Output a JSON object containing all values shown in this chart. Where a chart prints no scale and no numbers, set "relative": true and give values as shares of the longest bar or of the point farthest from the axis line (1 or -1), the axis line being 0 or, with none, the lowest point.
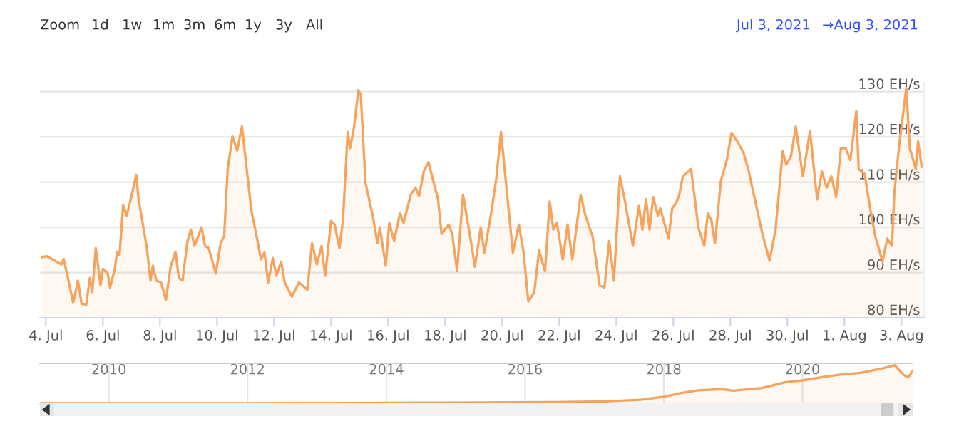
{
  "chart_data": [
    {
      "type": "area",
      "annotations": [
        "Zoom",
        "1d",
        "1w",
        "1m",
        "3m",
        "6m",
        "1y",
        "3y",
        "All",
        "Jul 3, 2021",
        "→",
        "Aug 3, 2021"
      ],
      "xlim": [
        "2021-07-03T19:00",
        "2021-08-03T19:00"
      ],
      "xticks": [
        {
          "value": "2021-07-04",
          "label": "4. Jul"
        },
        {
          "value": "2021-07-06",
          "label": "6. Jul"
        },
        {
          "value": "2021-07-08",
          "label": "8. Jul"
        },
        {
          "value": "2021-07-10",
          "label": "10. Jul"
        },
        {
          "value": "2021-07-12",
          "label": "12. Jul"
        },
        {
          "value": "2021-07-14",
          "label": "14. Jul"
        },
        {
          "value": "2021-07-16",
          "label": "16. Jul"
        },
        {
          "value": "2021-07-18",
          "label": "18. Jul"
        },
        {
          "value": "2021-07-20",
          "label": "20. Jul"
        },
        {
          "value": "2021-07-22",
          "label": "22. Jul"
        },
        {
          "value": "2021-07-24",
          "label": "24. Jul"
        },
        {
          "value": "2021-07-26",
          "label": "26. Jul"
        },
        {
          "value": "2021-07-28",
          "label": "28. Jul"
        },
        {
          "value": "2021-07-30",
          "label": "30. Jul"
        },
        {
          "value": "2021-08-01",
          "label": "1. Aug"
        },
        {
          "value": "2021-08-03",
          "label": "3. Aug"
        }
      ],
      "ylim": [
        80,
        132
      ],
      "yticks": [
        {
          "value": 80,
          "label": "80 EH/s"
        },
        {
          "value": 90,
          "label": "90 EH/s"
        },
        {
          "value": 100,
          "label": "100 EH/s"
        },
        {
          "value": 110,
          "label": "110 EH/s"
        },
        {
          "value": 120,
          "label": "120 EH/s"
        },
        {
          "value": 130,
          "label": "130 EH/s"
        }
      ],
      "grid": "y",
      "legend": false,
      "series": [
        {
          "color": "#f7a35c",
          "x": [
            "2021-07-03T21:00",
            "2021-07-04T01:00",
            "2021-07-04T13:00",
            "2021-07-04T15:00",
            "2021-07-04T19:00",
            "2021-07-04T23:00",
            "2021-07-05T03:00",
            "2021-07-05T06:00",
            "2021-07-05T10:00",
            "2021-07-05T13:00",
            "2021-07-05T15:00",
            "2021-07-05T18:00",
            "2021-07-05T22:00",
            "2021-07-06T00:00",
            "2021-07-06T04:00",
            "2021-07-06T06:00",
            "2021-07-06T10:00",
            "2021-07-06T12:00",
            "2021-07-06T14:00",
            "2021-07-06T17:00",
            "2021-07-06T20:00",
            "2021-07-06T23:00",
            "2021-07-07T04:00",
            "2021-07-07T06:00",
            "2021-07-07T09:00",
            "2021-07-07T13:00",
            "2021-07-07T16:00",
            "2021-07-07T18:00",
            "2021-07-07T21:00",
            "2021-07-08T01:00",
            "2021-07-08T05:00",
            "2021-07-08T09:00",
            "2021-07-08T11:00",
            "2021-07-08T13:00",
            "2021-07-08T16:00",
            "2021-07-08T19:00",
            "2021-07-08T23:00",
            "2021-07-09T02:00",
            "2021-07-09T05:00",
            "2021-07-09T11:00",
            "2021-07-09T14:00",
            "2021-07-09T17:00",
            "2021-07-09T23:00",
            "2021-07-10T03:00",
            "2021-07-10T06:00",
            "2021-07-10T09:00",
            "2021-07-10T13:00",
            "2021-07-10T17:00",
            "2021-07-10T21:00",
            "2021-07-11T01:00",
            "2021-07-11T05:00",
            "2021-07-11T09:00",
            "2021-07-11T13:00",
            "2021-07-11T16:00",
            "2021-07-11T19:00",
            "2021-07-11T23:00",
            "2021-07-12T02:00",
            "2021-07-12T06:00",
            "2021-07-12T09:00",
            "2021-07-12T15:00",
            "2021-07-12T21:00",
            "2021-07-13T04:00",
            "2021-07-13T08:00",
            "2021-07-13T12:00",
            "2021-07-13T16:00",
            "2021-07-13T19:00",
            "2021-07-14T00:00",
            "2021-07-14T03:00",
            "2021-07-14T07:00",
            "2021-07-14T10:00",
            "2021-07-14T14:00",
            "2021-07-14T16:00",
            "2021-07-14T19:00",
            "2021-07-14T23:00",
            "2021-07-15T01:00",
            "2021-07-15T05:00",
            "2021-07-15T11:00",
            "2021-07-15T15:00",
            "2021-07-15T17:00",
            "2021-07-15T22:00",
            "2021-07-16T01:00",
            "2021-07-16T05:00",
            "2021-07-16T10:00",
            "2021-07-16T13:00",
            "2021-07-16T19:00",
            "2021-07-16T23:00",
            "2021-07-17T02:00",
            "2021-07-17T06:00",
            "2021-07-17T10:00",
            "2021-07-17T13:00",
            "2021-07-17T18:00",
            "2021-07-17T21:00",
            "2021-07-18T03:00",
            "2021-07-18T06:00",
            "2021-07-18T10:00",
            "2021-07-18T15:00",
            "2021-07-18T21:00",
            "2021-07-19T01:00",
            "2021-07-19T06:00",
            "2021-07-19T09:00",
            "2021-07-19T15:00",
            "2021-07-19T19:00",
            "2021-07-19T23:00",
            "2021-07-20T03:00",
            "2021-07-20T09:00",
            "2021-07-20T14:00",
            "2021-07-20T18:00",
            "2021-07-20T22:00",
            "2021-07-21T03:00",
            "2021-07-21T07:00",
            "2021-07-21T12:00",
            "2021-07-21T16:00",
            "2021-07-21T19:00",
            "2021-07-21T22:00",
            "2021-07-22T03:00",
            "2021-07-22T07:00",
            "2021-07-22T11:00",
            "2021-07-22T18:00",
            "2021-07-22T22:00",
            "2021-07-23T04:00",
            "2021-07-23T10:00",
            "2021-07-23T14:00",
            "2021-07-23T18:00",
            "2021-07-23T22:00",
            "2021-07-24T03:00",
            "2021-07-24T07:00",
            "2021-07-24T14:00",
            "2021-07-24T19:00",
            "2021-07-24T22:00",
            "2021-07-25T01:00",
            "2021-07-25T04:00",
            "2021-07-25T07:00",
            "2021-07-25T11:00",
            "2021-07-25T13:00",
            "2021-07-25T20:00",
            "2021-07-25T23:00",
            "2021-07-26T02:00",
            "2021-07-26T05:00",
            "2021-07-26T08:00",
            "2021-07-26T15:00",
            "2021-07-26T21:00",
            "2021-07-27T02:00",
            "2021-07-27T05:00",
            "2021-07-27T08:00",
            "2021-07-27T11:00",
            "2021-07-27T16:00",
            "2021-07-27T21:00",
            "2021-07-28T01:00",
            "2021-07-28T07:00",
            "2021-07-28T11:00",
            "2021-07-28T15:00",
            "2021-07-28T21:00",
            "2021-07-29T03:00",
            "2021-07-29T09:00",
            "2021-07-29T14:00",
            "2021-07-29T20:00",
            "2021-07-29T23:00",
            "2021-07-30T03:00",
            "2021-07-30T07:00",
            "2021-07-30T13:00",
            "2021-07-30T19:00",
            "2021-07-31T01:00",
            "2021-07-31T05:00",
            "2021-07-31T09:00",
            "2021-07-31T13:00",
            "2021-07-31T17:00",
            "2021-07-31T21:00",
            "2021-08-01T01:00",
            "2021-08-01T05:00",
            "2021-08-01T10:00",
            "2021-08-01T12:00",
            "2021-08-01T17:00",
            "2021-08-01T22:00",
            "2021-08-02T02:00",
            "2021-08-02T08:00",
            "2021-08-02T12:00",
            "2021-08-02T16:00",
            "2021-08-02T18:00",
            "2021-08-02T22:00",
            "2021-08-03T04:00",
            "2021-08-03T07:00",
            "2021-08-03T12:00",
            "2021-08-03T14:00",
            "2021-08-03T17:00"
          ],
          "values": [
            93.4,
            93.6,
            91.8,
            93,
            88.2,
            83.3,
            88.2,
            83.1,
            82.9,
            88.8,
            85.7,
            95.4,
            87.2,
            90.8,
            89.8,
            86.7,
            90.8,
            94.6,
            93.9,
            104.9,
            102.6,
            105.7,
            111.6,
            106.2,
            101.6,
            95.4,
            88.2,
            91.5,
            88.2,
            87.8,
            83.9,
            91.3,
            92.9,
            94.6,
            88.8,
            88.2,
            96.7,
            99.5,
            95.9,
            100,
            95.9,
            95.4,
            89.8,
            96.5,
            98,
            112.9,
            120.1,
            117,
            122.3,
            112.9,
            103.6,
            98.5,
            92.9,
            94.4,
            87.8,
            93.2,
            89.3,
            92.4,
            87.8,
            84.7,
            87.8,
            86.2,
            96.5,
            91.8,
            95.9,
            89.3,
            101.4,
            100.6,
            95.4,
            101.6,
            121.1,
            117.5,
            121.6,
            130.3,
            129.3,
            109.8,
            102.6,
            96.5,
            100,
            91.5,
            101,
            97,
            103.1,
            101,
            107.2,
            108.8,
            106.9,
            112.4,
            114.4,
            111.3,
            106.2,
            98.5,
            100.6,
            98.5,
            90.3,
            107.2,
            98,
            91.3,
            100,
            94.4,
            103.6,
            110.8,
            121.1,
            110.3,
            94.4,
            100.6,
            94.4,
            83.6,
            85.7,
            94.9,
            90.3,
            105.7,
            99.5,
            101,
            92.9,
            100.6,
            92.9,
            107.2,
            102.6,
            98,
            87.2,
            86.7,
            97,
            88.2,
            111.3,
            106.2,
            95.9,
            104.7,
            99.5,
            106.2,
            99.5,
            106.7,
            102.6,
            104.2,
            97.5,
            104.2,
            105.2,
            107.2,
            111.3,
            112.9,
            100,
            95.9,
            103.1,
            101.6,
            96.5,
            110.3,
            114.9,
            120.9,
            118.5,
            116.5,
            112.9,
            105.7,
            98.5,
            92.6,
            99.5,
            116.8,
            113.9,
            115.7,
            122.3,
            111.3,
            121.3,
            106.2,
            112.4,
            108.8,
            111.3,
            106.7,
            117.5,
            117.5,
            114.9,
            125.7,
            112.9,
            111.8,
            103.6,
            98,
            92.4,
            97.5,
            95.9,
            107.7,
            118,
            130.8,
            117.5,
            112.9,
            119,
            113.4
          ]
        }
      ]
    },
    {
      "type": "area",
      "relative": true,
      "legend": false,
      "tick_labels": "x",
      "grid": "x",
      "xlim": [
        "2009-01-03",
        "2021-08-03"
      ],
      "xticks": [
        {
          "value": "2010-01-01",
          "label": "2010"
        },
        {
          "value": "2012-01-01",
          "label": "2012"
        },
        {
          "value": "2014-01-01",
          "label": "2014"
        },
        {
          "value": "2016-01-01",
          "label": "2016"
        },
        {
          "value": "2018-01-01",
          "label": "2018"
        },
        {
          "value": "2020-01-01",
          "label": "2020"
        }
      ],
      "series": [
        {
          "color": "#f7a35c",
          "x": [
            "2009-01-03",
            "2012-01-01",
            "2014-01-01",
            "2015-06-01",
            "2016-06-01",
            "2017-03-01",
            "2017-09-01",
            "2018-01-01",
            "2018-04-01",
            "2018-07-01",
            "2018-11-01",
            "2019-01-01",
            "2019-06-01",
            "2019-10-01",
            "2020-01-01",
            "2020-05-01",
            "2020-08-01",
            "2020-11-01",
            "2021-01-01",
            "2021-03-01",
            "2021-05-01",
            "2021-06-15",
            "2021-07-10",
            "2021-08-03"
          ],
          "values": [
            0,
            0,
            0.01,
            0.02,
            0.03,
            0.05,
            0.09,
            0.17,
            0.27,
            0.34,
            0.37,
            0.33,
            0.4,
            0.55,
            0.6,
            0.7,
            0.76,
            0.8,
            0.86,
            0.92,
            1,
            0.75,
            0.68,
            0.85
          ]
        }
      ]
    }
  ]
}
